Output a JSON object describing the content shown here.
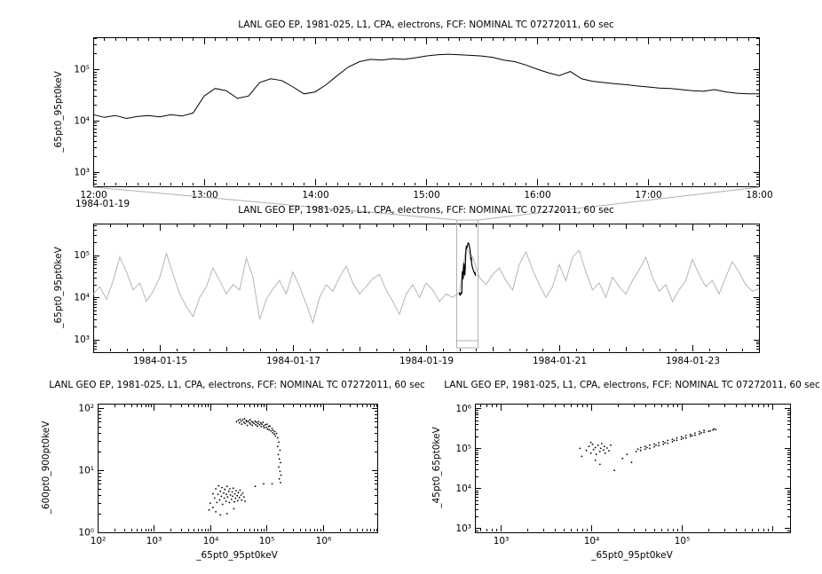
{
  "canvas": {
    "background": "#ffffff",
    "line_color": "#000000",
    "overview_color": "#b5b5b5",
    "context_color": "#b0b0b0"
  },
  "chart_data": [
    {
      "id": "top-timeseries",
      "type": "line",
      "title": "LANL GEO EP, 1981-025, L1, CPA, electrons, FCF: NOMINAL TC 07272011, 60 sec",
      "ylabel": "_65pt0_95pt0keV",
      "x_context": "1984-01-19",
      "xlim": [
        12,
        18
      ],
      "x_minor_step": 0.1,
      "x_ticks": [
        {
          "v": 12,
          "label": "12:00"
        },
        {
          "v": 13,
          "label": "13:00"
        },
        {
          "v": 14,
          "label": "14:00"
        },
        {
          "v": 15,
          "label": "15:00"
        },
        {
          "v": 16,
          "label": "16:00"
        },
        {
          "v": 17,
          "label": "17:00"
        },
        {
          "v": 18,
          "label": "18:00"
        }
      ],
      "ylim_log": [
        2.72,
        5.62
      ],
      "y_ticks": [
        {
          "e": 3,
          "label": "10³"
        },
        {
          "e": 4,
          "label": "10⁴"
        },
        {
          "e": 5,
          "label": "10⁵"
        }
      ],
      "series": {
        "color": "#000000",
        "x_start": 12,
        "x_step": 0.1,
        "scale": 1000,
        "values": [
          13,
          11.5,
          12.5,
          11,
          12,
          12.5,
          11.8,
          13,
          12.2,
          14,
          30,
          42,
          38,
          27,
          30,
          55,
          65,
          60,
          45,
          33,
          36,
          50,
          75,
          110,
          140,
          155,
          150,
          160,
          155,
          165,
          180,
          190,
          195,
          190,
          185,
          180,
          170,
          150,
          140,
          120,
          100,
          85,
          75,
          90,
          65,
          58,
          55,
          52,
          50,
          47,
          45,
          43,
          42,
          40,
          38,
          37,
          40,
          36,
          34,
          33,
          33
        ]
      }
    },
    {
      "id": "overview-timeseries",
      "type": "line",
      "title": "LANL GEO EP, 1981-025, L1, CPA, electrons, FCF: NOMINAL TC 07272011, 60 sec",
      "ylabel": "_65pt0_95pt0keV",
      "xlim": [
        14,
        24
      ],
      "x_minor_step": 0.25,
      "x_medium_step": 1,
      "x_ticks": [
        {
          "v": 15,
          "label": "1984-01-15"
        },
        {
          "v": 17,
          "label": "1984-01-17"
        },
        {
          "v": 19,
          "label": "1984-01-19"
        },
        {
          "v": 21,
          "label": "1984-01-21"
        },
        {
          "v": 23,
          "label": "1984-01-23"
        }
      ],
      "ylim_log": [
        2.7,
        5.75
      ],
      "y_ticks": [
        {
          "e": 3,
          "label": "10³"
        },
        {
          "e": 4,
          "label": "10⁴"
        },
        {
          "e": 5,
          "label": "10⁵"
        }
      ],
      "series": {
        "color": "#b5b5b5",
        "x_start": 14,
        "x_step": 0.1,
        "scale": 1000,
        "values": [
          12,
          18,
          9,
          25,
          90,
          40,
          15,
          22,
          8,
          14,
          30,
          110,
          35,
          12,
          6,
          3.5,
          10,
          18,
          50,
          25,
          12,
          20,
          15,
          85,
          30,
          3,
          9,
          16,
          25,
          12,
          40,
          18,
          7,
          2.5,
          10,
          20,
          14,
          30,
          55,
          22,
          12,
          18,
          28,
          35,
          15,
          8,
          4,
          12,
          20,
          10,
          22,
          15,
          8,
          12,
          10,
          13,
          150,
          90,
          30,
          20,
          35,
          50,
          25,
          15,
          60,
          120,
          45,
          20,
          10,
          18,
          60,
          25,
          90,
          130,
          40,
          15,
          22,
          10,
          30,
          18,
          12,
          25,
          45,
          90,
          30,
          14,
          20,
          8,
          15,
          25,
          80,
          35,
          18,
          25,
          12,
          30,
          70,
          40,
          20,
          14,
          16
        ]
      },
      "highlight": {
        "source": "top-timeseries",
        "day_start": 19.5,
        "day_span": 0.25,
        "color": "#000000"
      },
      "context_box": {
        "x0": 19.46,
        "x1": 19.78,
        "color": "#b0b0b0"
      }
    },
    {
      "id": "scatter-left",
      "type": "scatter",
      "title": "LANL GEO EP, 1981-025, L1, CPA, electrons, FCF: NOMINAL TC 07272011, 60 sec",
      "ylabel": "_600pt0_900pt0keV",
      "xlabel": "_65pt0_95pt0keV",
      "x_is_log": true,
      "xlim_log": [
        2,
        6.97
      ],
      "x_ticks": [
        {
          "e": 2,
          "label": "10²"
        },
        {
          "e": 3,
          "label": "10³"
        },
        {
          "e": 4,
          "label": "10⁴"
        },
        {
          "e": 5,
          "label": "10⁵"
        },
        {
          "e": 6,
          "label": "10⁶"
        }
      ],
      "ylim_log": [
        0,
        2.07
      ],
      "y_ticks": [
        {
          "e": 0,
          "label": "10⁰"
        },
        {
          "e": 1,
          "label": "10¹"
        },
        {
          "e": 2,
          "label": "10²"
        }
      ],
      "point_color": "#000000",
      "points_log10": [
        [
          4.47,
          1.78
        ],
        [
          4.5,
          1.8
        ],
        [
          4.52,
          1.76
        ],
        [
          4.53,
          1.82
        ],
        [
          4.55,
          1.79
        ],
        [
          4.56,
          1.74
        ],
        [
          4.58,
          1.81
        ],
        [
          4.6,
          1.77
        ],
        [
          4.61,
          1.83
        ],
        [
          4.62,
          1.75
        ],
        [
          4.64,
          1.8
        ],
        [
          4.65,
          1.78
        ],
        [
          4.66,
          1.72
        ],
        [
          4.68,
          1.79
        ],
        [
          4.7,
          1.76
        ],
        [
          4.71,
          1.81
        ],
        [
          4.72,
          1.74
        ],
        [
          4.74,
          1.78
        ],
        [
          4.75,
          1.72
        ],
        [
          4.76,
          1.77
        ],
        [
          4.78,
          1.75
        ],
        [
          4.8,
          1.79
        ],
        [
          4.81,
          1.73
        ],
        [
          4.82,
          1.77
        ],
        [
          4.84,
          1.71
        ],
        [
          4.85,
          1.75
        ],
        [
          4.86,
          1.78
        ],
        [
          4.88,
          1.73
        ],
        [
          4.9,
          1.76
        ],
        [
          4.91,
          1.7
        ],
        [
          4.92,
          1.74
        ],
        [
          4.94,
          1.77
        ],
        [
          4.95,
          1.71
        ],
        [
          4.96,
          1.68
        ],
        [
          4.98,
          1.73
        ],
        [
          5.0,
          1.69
        ],
        [
          5.01,
          1.74
        ],
        [
          5.02,
          1.66
        ],
        [
          5.04,
          1.7
        ],
        [
          5.05,
          1.65
        ],
        [
          5.06,
          1.71
        ],
        [
          5.08,
          1.63
        ],
        [
          5.1,
          1.67
        ],
        [
          5.11,
          1.6
        ],
        [
          5.12,
          1.64
        ],
        [
          5.14,
          1.58
        ],
        [
          5.15,
          1.62
        ],
        [
          5.16,
          1.55
        ],
        [
          5.18,
          1.59
        ],
        [
          5.2,
          1.52
        ],
        [
          5.22,
          1.45
        ],
        [
          5.2,
          1.38
        ],
        [
          5.24,
          1.32
        ],
        [
          5.21,
          1.25
        ],
        [
          5.23,
          1.18
        ],
        [
          5.25,
          1.12
        ],
        [
          5.22,
          1.05
        ],
        [
          5.24,
          0.98
        ],
        [
          5.26,
          0.92
        ],
        [
          5.23,
          0.86
        ],
        [
          5.25,
          0.8
        ],
        [
          5.1,
          0.78
        ],
        [
          4.95,
          0.78
        ],
        [
          4.8,
          0.74
        ],
        [
          4.05,
          0.62
        ],
        [
          4.08,
          0.55
        ],
        [
          4.1,
          0.7
        ],
        [
          4.12,
          0.48
        ],
        [
          4.14,
          0.61
        ],
        [
          4.15,
          0.75
        ],
        [
          4.17,
          0.52
        ],
        [
          4.18,
          0.66
        ],
        [
          4.2,
          0.58
        ],
        [
          4.21,
          0.72
        ],
        [
          4.22,
          0.45
        ],
        [
          4.24,
          0.63
        ],
        [
          4.25,
          0.55
        ],
        [
          4.26,
          0.69
        ],
        [
          4.28,
          0.5
        ],
        [
          4.29,
          0.61
        ],
        [
          4.3,
          0.74
        ],
        [
          4.31,
          0.57
        ],
        [
          4.33,
          0.66
        ],
        [
          4.34,
          0.48
        ],
        [
          4.35,
          0.7
        ],
        [
          4.36,
          0.6
        ],
        [
          4.38,
          0.53
        ],
        [
          4.39,
          0.65
        ],
        [
          4.4,
          0.58
        ],
        [
          4.41,
          0.71
        ],
        [
          4.43,
          0.49
        ],
        [
          4.44,
          0.62
        ],
        [
          4.45,
          0.55
        ],
        [
          4.46,
          0.67
        ],
        [
          4.48,
          0.59
        ],
        [
          4.49,
          0.51
        ],
        [
          4.5,
          0.64
        ],
        [
          4.52,
          0.56
        ],
        [
          4.53,
          0.68
        ],
        [
          4.55,
          0.6
        ],
        [
          4.56,
          0.52
        ],
        [
          4.58,
          0.63
        ],
        [
          4.6,
          0.57
        ],
        [
          4.62,
          0.5
        ],
        [
          4.05,
          0.4
        ],
        [
          4.1,
          0.33
        ],
        [
          4.18,
          0.28
        ],
        [
          4.0,
          0.47
        ],
        [
          3.98,
          0.36
        ],
        [
          4.3,
          0.3
        ],
        [
          4.42,
          0.38
        ]
      ]
    },
    {
      "id": "scatter-right",
      "type": "scatter",
      "title": "LANL GEO EP, 1981-025, L1, CPA, electrons, FCF: NOMINAL TC 07272011, 60 sec",
      "ylabel": "_45pt0_65pt0keV",
      "xlabel": "_65pt0_95pt0keV",
      "x_is_log": true,
      "xlim_log": [
        2.72,
        6.2
      ],
      "x_ticks": [
        {
          "e": 3,
          "label": "10³"
        },
        {
          "e": 4,
          "label": "10⁴"
        },
        {
          "e": 5,
          "label": "10⁵"
        }
      ],
      "ylim_log": [
        2.9,
        6.12
      ],
      "y_ticks": [
        {
          "e": 3,
          "label": "10³"
        },
        {
          "e": 4,
          "label": "10⁴"
        },
        {
          "e": 5,
          "label": "10⁵"
        },
        {
          "e": 6,
          "label": "10⁶"
        }
      ],
      "point_color": "#000000",
      "points_log10": [
        [
          3.95,
          4.95
        ],
        [
          3.98,
          5.05
        ],
        [
          4.0,
          4.88
        ],
        [
          4.02,
          5.1
        ],
        [
          4.03,
          4.97
        ],
        [
          4.05,
          5.02
        ],
        [
          4.06,
          4.85
        ],
        [
          4.08,
          5.08
        ],
        [
          4.1,
          4.92
        ],
        [
          4.11,
          5.0
        ],
        [
          4.12,
          5.12
        ],
        [
          4.14,
          4.96
        ],
        [
          4.15,
          5.05
        ],
        [
          4.16,
          4.88
        ],
        [
          4.18,
          5.01
        ],
        [
          4.2,
          4.94
        ],
        [
          4.05,
          4.7
        ],
        [
          4.1,
          4.6
        ],
        [
          3.9,
          4.8
        ],
        [
          3.88,
          5.0
        ],
        [
          4.0,
          5.15
        ],
        [
          4.22,
          5.08
        ],
        [
          4.26,
          4.45
        ],
        [
          4.5,
          4.92
        ],
        [
          4.55,
          4.95
        ],
        [
          4.6,
          4.98
        ],
        [
          4.65,
          5.0
        ],
        [
          4.7,
          5.04
        ],
        [
          4.75,
          5.07
        ],
        [
          4.8,
          5.1
        ],
        [
          4.85,
          5.13
        ],
        [
          4.9,
          5.17
        ],
        [
          4.95,
          5.2
        ],
        [
          5.0,
          5.23
        ],
        [
          5.05,
          5.26
        ],
        [
          5.1,
          5.3
        ],
        [
          5.15,
          5.33
        ],
        [
          5.2,
          5.36
        ],
        [
          5.25,
          5.4
        ],
        [
          5.3,
          5.43
        ],
        [
          5.35,
          5.46
        ],
        [
          4.55,
          5.02
        ],
        [
          4.6,
          5.05
        ],
        [
          4.65,
          5.08
        ],
        [
          4.7,
          5.11
        ],
        [
          4.75,
          5.14
        ],
        [
          4.8,
          5.17
        ],
        [
          4.85,
          5.2
        ],
        [
          4.9,
          5.23
        ],
        [
          4.95,
          5.26
        ],
        [
          5.0,
          5.29
        ],
        [
          5.05,
          5.32
        ],
        [
          5.1,
          5.35
        ],
        [
          5.15,
          5.38
        ],
        [
          5.2,
          5.42
        ],
        [
          5.25,
          5.45
        ],
        [
          4.52,
          4.98
        ],
        [
          4.62,
          5.02
        ],
        [
          4.72,
          5.08
        ],
        [
          4.82,
          5.14
        ],
        [
          4.92,
          5.2
        ],
        [
          5.02,
          5.26
        ],
        [
          5.12,
          5.32
        ],
        [
          5.22,
          5.39
        ],
        [
          5.32,
          5.44
        ],
        [
          5.36,
          5.49
        ],
        [
          4.35,
          4.75
        ],
        [
          4.4,
          4.85
        ],
        [
          4.45,
          4.65
        ],
        [
          5.38,
          5.47
        ]
      ]
    }
  ]
}
